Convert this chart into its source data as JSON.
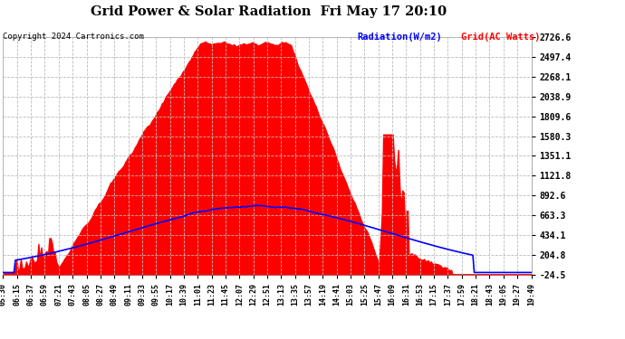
{
  "title": "Grid Power & Solar Radiation  Fri May 17 20:10",
  "copyright": "Copyright 2024 Cartronics.com",
  "legend_radiation": "Radiation(W/m2)",
  "legend_grid": "Grid(AC Watts)",
  "yticks": [
    2726.6,
    2497.4,
    2268.1,
    2038.9,
    1809.6,
    1580.3,
    1351.1,
    1121.8,
    892.6,
    663.3,
    434.1,
    204.8,
    -24.5
  ],
  "ymin": -24.5,
  "ymax": 2726.6,
  "background_color": "#ffffff",
  "plot_bg_color": "#ffffff",
  "grid_color": "#bbbbbb",
  "radiation_color": "#0000ff",
  "grid_ac_color": "#ff0000",
  "xtick_labels": [
    "05:30",
    "06:15",
    "06:37",
    "06:59",
    "07:21",
    "07:43",
    "08:05",
    "08:27",
    "08:49",
    "09:11",
    "09:33",
    "09:55",
    "10:17",
    "10:39",
    "11:01",
    "11:23",
    "11:45",
    "12:07",
    "12:29",
    "12:51",
    "13:13",
    "13:35",
    "13:57",
    "14:19",
    "14:41",
    "15:03",
    "15:25",
    "15:47",
    "16:09",
    "16:31",
    "16:53",
    "17:15",
    "17:37",
    "17:59",
    "18:21",
    "18:43",
    "19:05",
    "19:27",
    "19:49"
  ],
  "n_points": 390
}
